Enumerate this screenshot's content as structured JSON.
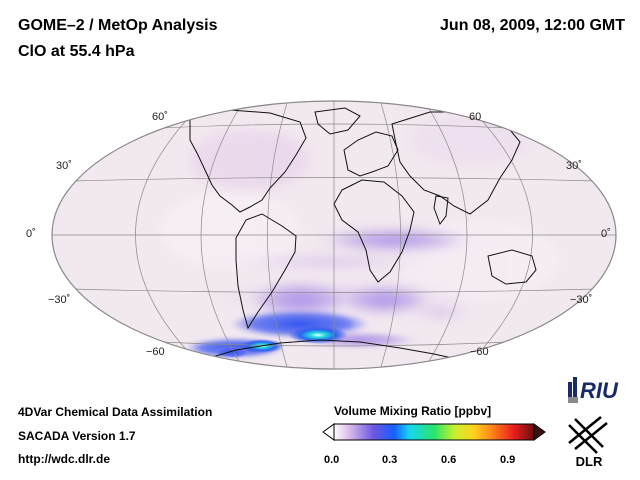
{
  "header": {
    "title": "GOME–2 / MetOp Analysis",
    "subtitle": "ClO at 55.4 hPa",
    "datetime": "Jun 08, 2009, 12:00 GMT"
  },
  "map": {
    "projection": "Hammer-Aitoff (global)",
    "lat_labels_left": [
      "60˚",
      "30˚",
      "0˚",
      "−30˚",
      "−60"
    ],
    "lat_labels_right": [
      "60",
      "30˚",
      "0˚",
      "−30˚",
      "−60"
    ]
  },
  "footer": {
    "line1": "4DVar Chemical Data Assimilation",
    "line2": "SACADA Version 1.7",
    "line3": "http://wdc.dlr.de"
  },
  "colorbar": {
    "title": "Volume Mixing Ratio [ppbv]",
    "ticks": [
      "0.0",
      "0.3",
      "0.6",
      "0.9"
    ],
    "range": [
      0.0,
      1.0
    ]
  },
  "logos": {
    "riu": "RIU",
    "dlr": "DLR"
  },
  "colors": {
    "background_field": "#f1e6ee",
    "ocean_edge": "#f6eef4",
    "enhanced": "#b69ce0",
    "high": "#3355ee",
    "peak": "#22dddd"
  }
}
